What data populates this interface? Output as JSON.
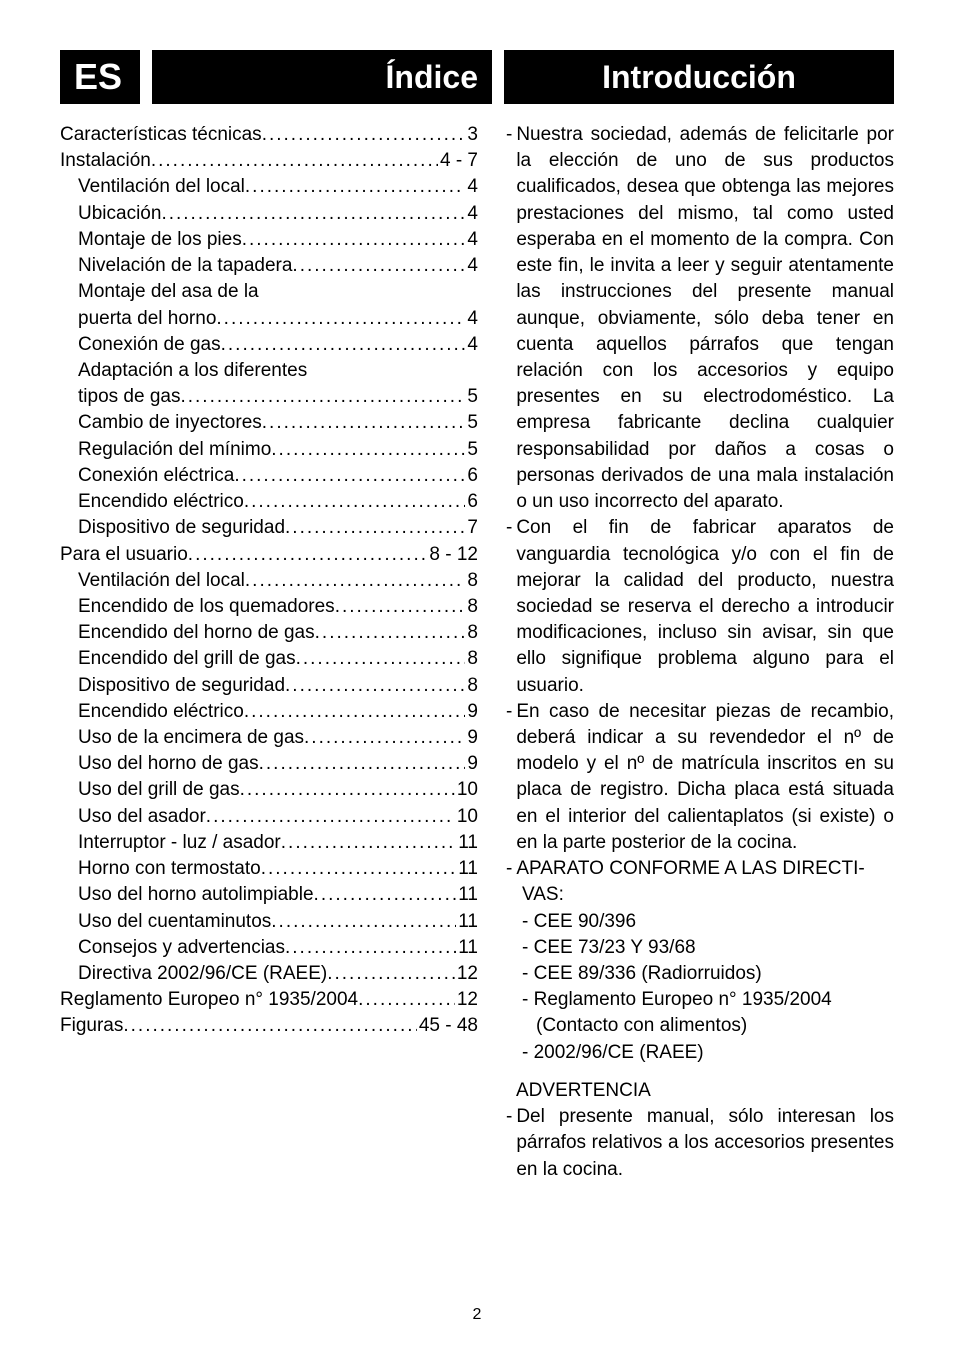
{
  "header": {
    "lang": "ES",
    "indice": "Índice",
    "intro": "Introducción"
  },
  "toc": {
    "items": [
      {
        "label": "Características técnicas",
        "page": "3",
        "indent": false
      },
      {
        "label": "Instalación",
        "page": "4 - 7",
        "indent": false
      },
      {
        "label": "Ventilación del local",
        "page": "4",
        "indent": true
      },
      {
        "label": "Ubicación",
        "page": "4",
        "indent": true
      },
      {
        "label": "Montaje de los pies",
        "page": "4",
        "indent": true
      },
      {
        "label": "Nivelación de la tapadera",
        "page": "4",
        "indent": true
      },
      {
        "label": "Montaje del asa de la",
        "page": "",
        "indent": true,
        "nodots": true
      },
      {
        "label": "puerta del horno",
        "page": "4",
        "indent": true
      },
      {
        "label": "Conexión de gas",
        "page": "4",
        "indent": true
      },
      {
        "label": "Adaptación a los diferentes",
        "page": "",
        "indent": true,
        "nodots": true
      },
      {
        "label": "tipos de gas",
        "page": "5",
        "indent": true
      },
      {
        "label": "Cambio de inyectores",
        "page": "5",
        "indent": true
      },
      {
        "label": "Regulación del mínimo",
        "page": "5",
        "indent": true
      },
      {
        "label": "Conexión eléctrica",
        "page": "6",
        "indent": true
      },
      {
        "label": "Encendido eléctrico",
        "page": "6",
        "indent": true
      },
      {
        "label": "Dispositivo de seguridad",
        "page": "7",
        "indent": true
      },
      {
        "label": "Para el usuario",
        "page": "8 - 12",
        "indent": false
      },
      {
        "label": "Ventilación del local",
        "page": "8",
        "indent": true
      },
      {
        "label": "Encendido de los quemadores",
        "page": "8",
        "indent": true
      },
      {
        "label": "Encendido del horno de gas",
        "page": "8",
        "indent": true
      },
      {
        "label": "Encendido del grill de gas",
        "page": "8",
        "indent": true
      },
      {
        "label": "Dispositivo de seguridad",
        "page": "8",
        "indent": true
      },
      {
        "label": "Encendido eléctrico",
        "page": "9",
        "indent": true
      },
      {
        "label": "Uso de la encimera de gas",
        "page": "9",
        "indent": true
      },
      {
        "label": "Uso del horno de gas",
        "page": "9",
        "indent": true
      },
      {
        "label": "Uso del grill de gas",
        "page": "10",
        "indent": true
      },
      {
        "label": "Uso del asador",
        "page": "10",
        "indent": true
      },
      {
        "label": "Interruptor - luz / asador",
        "page": "11",
        "indent": true
      },
      {
        "label": "Horno con termostato",
        "page": "11",
        "indent": true
      },
      {
        "label": "Uso del horno autolimpiable",
        "page": "11",
        "indent": true
      },
      {
        "label": "Uso del cuentaminutos",
        "page": "11",
        "indent": true
      },
      {
        "label": "Consejos y advertencias",
        "page": "11",
        "indent": true
      },
      {
        "label": "Directiva 2002/96/CE (RAEE)",
        "page": "12",
        "indent": true
      },
      {
        "label": "Reglamento Europeo n° 1935/2004",
        "page": "12",
        "indent": false
      },
      {
        "label": "Figuras",
        "page": "45 - 48",
        "indent": false
      }
    ]
  },
  "intro_text": {
    "p1": "Nuestra sociedad, además de felicitarle por la elección de uno de sus productos cualificados, desea que obtenga las mejores prestaciones del mismo, tal como usted esperaba en el momento de la compra. Con este fin, le invita a leer y seguir atentamente las instrucciones del presente manual aunque, obviamente, sólo deba tener en cuenta aquellos párrafos que tengan relación con los accesorios y equipo presentes en su electrodoméstico. La empresa fabricante declina cualquier responsabilidad por daños a cosas o personas derivados de una mala instalación o un uso incorrecto del aparato.",
    "p2": "Con el fin de fabricar aparatos de vanguardia tecnológica y/o con el fin de mejorar la calidad del producto, nuestra sociedad se reserva el derecho a introducir modificaciones, incluso sin avisar, sin que ello signifique problema alguno para el usuario.",
    "p3": "En caso de necesitar piezas de recambio, deberá indicar a su revendedor el nº de modelo y el nº de matrícula inscritos en su placa de registro. Dicha placa está situada en el interior del calientaplatos (si existe) o en la parte posterior de la cocina.",
    "p4a": "APARATO CONFORME A LAS DIRECTI-",
    "p4b": "VAS:",
    "d1": "- CEE 90/396",
    "d2": "- CEE 73/23 Y 93/68",
    "d3": "- CEE 89/336 (Radiorruidos)",
    "d4a": "- Reglamento Europeo n° 1935/2004",
    "d4b": "(Contacto con alimentos)",
    "d5": "- 2002/96/CE (RAEE)",
    "adv_title": "ADVERTENCIA",
    "adv_text": "Del presente manual, sólo interesan los párrafos relativos a los accesorios presentes en la cocina."
  },
  "page_number": "2"
}
